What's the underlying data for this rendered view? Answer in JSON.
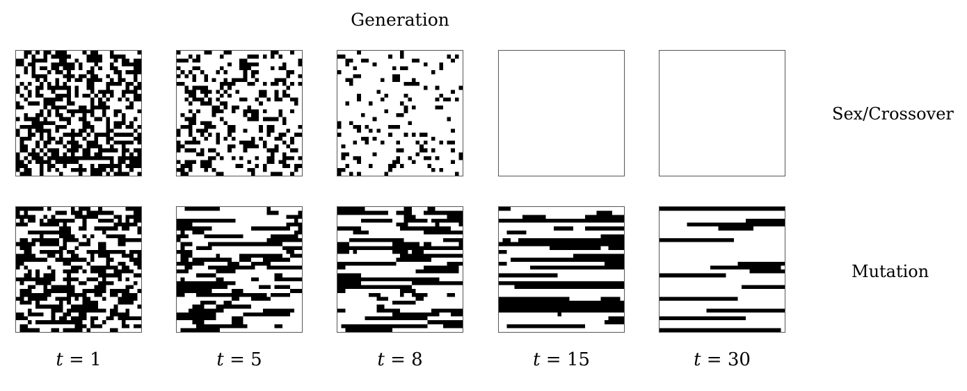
{
  "figure": {
    "title": "Generation",
    "rows": [
      {
        "label": "Sex/Crossover"
      },
      {
        "label": "Mutation"
      }
    ],
    "columns": [
      {
        "t_var": "t",
        "t_eq": "= 1"
      },
      {
        "t_var": "t",
        "t_eq": "= 5"
      },
      {
        "t_var": "t",
        "t_eq": "= 8"
      },
      {
        "t_var": "t",
        "t_eq": "= 15"
      },
      {
        "t_var": "t",
        "t_eq": "= 30"
      }
    ],
    "grid_size": 32,
    "fill_color": "#000000",
    "background_color": "#ffffff",
    "panel_black_density": [
      [
        0.5,
        0.3,
        0.15,
        0.0,
        0.0
      ],
      [
        0.5,
        0.42,
        0.4,
        0.33,
        0.2
      ]
    ],
    "panel_horizontal_runs": [
      [
        0.0,
        0.1,
        0.1,
        0.0,
        0.0
      ],
      [
        0.35,
        0.75,
        0.8,
        0.92,
        0.95
      ]
    ]
  }
}
